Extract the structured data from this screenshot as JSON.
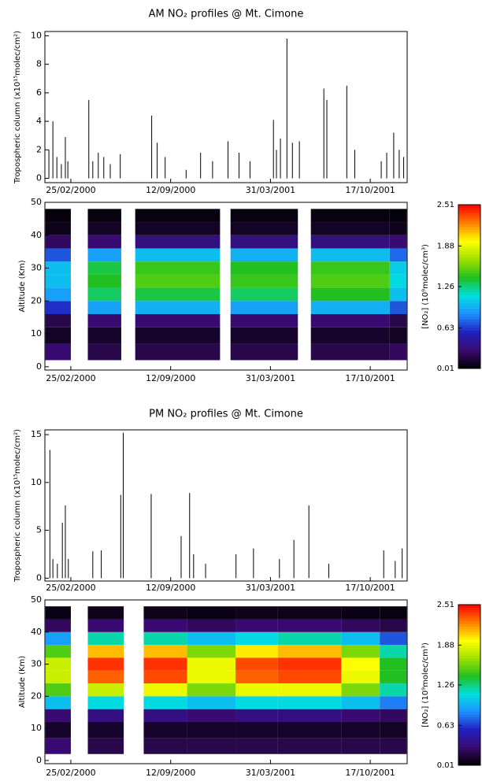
{
  "chart_data": [
    {
      "type": "spike",
      "title": "AM NO₂ profiles @ Mt. Cimone",
      "y_label": "Tropospheric column (x10¹⁵molec/cm²)",
      "color": "#000000",
      "xlim": [
        "2000-01-04",
        "2001-12-30"
      ],
      "xticks": [
        {
          "value": "2000-02-25",
          "label": "25/02/2000"
        },
        {
          "value": "2000-09-12",
          "label": "12/09/2000"
        },
        {
          "value": "2001-03-31",
          "label": "31/03/2001"
        },
        {
          "value": "2001-10-17",
          "label": "17/10/2001"
        }
      ],
      "ylim": [
        -0.3,
        10.3
      ],
      "yticks": [
        0,
        2,
        4,
        6,
        8,
        10
      ],
      "x": [
        "2000-01-12",
        "2000-01-20",
        "2000-01-28",
        "2000-02-06",
        "2000-02-14",
        "2000-02-19",
        "2000-04-01",
        "2000-04-09",
        "2000-04-20",
        "2000-05-01",
        "2000-05-14",
        "2000-06-03",
        "2000-08-05",
        "2000-08-16",
        "2000-09-01",
        "2000-10-13",
        "2000-11-11",
        "2000-12-05",
        "2001-01-05",
        "2001-01-27",
        "2001-02-18",
        "2001-04-06",
        "2001-04-12",
        "2001-04-20",
        "2001-05-03",
        "2001-05-14",
        "2001-05-28",
        "2001-07-16",
        "2001-07-22",
        "2001-08-31",
        "2001-09-16",
        "2001-11-08",
        "2001-11-19",
        "2001-12-03",
        "2001-12-14",
        "2001-12-23"
      ],
      "values": [
        2.0,
        4.0,
        1.5,
        1.0,
        2.9,
        1.2,
        5.5,
        1.2,
        1.8,
        1.5,
        1.0,
        1.7,
        4.4,
        2.5,
        1.5,
        0.6,
        1.8,
        1.2,
        2.6,
        1.8,
        1.2,
        4.1,
        2.0,
        2.8,
        9.8,
        2.5,
        2.6,
        6.3,
        5.5,
        6.5,
        2.0,
        1.2,
        1.8,
        3.2,
        2.0,
        1.5
      ]
    },
    {
      "type": "heatmap",
      "y_label": "Altitude (Km)",
      "xlim": [
        "2000-01-04",
        "2001-12-30"
      ],
      "xticks": [
        {
          "value": "2000-02-25",
          "label": "25/02/2000"
        },
        {
          "value": "2000-09-12",
          "label": "12/09/2000"
        },
        {
          "value": "2001-03-31",
          "label": "31/03/2001"
        },
        {
          "value": "2001-10-17",
          "label": "17/10/2001"
        }
      ],
      "ylim": [
        -1,
        50
      ],
      "yticks": [
        0,
        10,
        20,
        30,
        40,
        50
      ],
      "x_bins": [
        "2000-01-05",
        "2000-02-25",
        "2000-03-30",
        "2000-06-05",
        "2000-07-03",
        "2000-12-20",
        "2001-01-10",
        "2001-05-25",
        "2001-06-20",
        "2001-11-25",
        "2001-12-29"
      ],
      "y_bins": [
        2,
        7,
        12,
        16,
        20,
        24,
        28,
        32,
        36,
        40,
        44,
        48
      ],
      "z": [
        [
          0.3,
          0.1,
          0.2,
          0.6,
          0.9,
          1.0,
          1.0,
          0.7,
          0.25,
          0.08,
          0.04
        ],
        null,
        [
          0.2,
          0.12,
          0.3,
          0.9,
          1.3,
          1.4,
          1.35,
          0.9,
          0.3,
          0.1,
          0.05
        ],
        null,
        [
          0.2,
          0.12,
          0.3,
          0.95,
          1.35,
          1.5,
          1.45,
          1.0,
          0.35,
          0.1,
          0.05
        ],
        null,
        [
          0.2,
          0.12,
          0.3,
          0.9,
          1.3,
          1.45,
          1.4,
          0.95,
          0.35,
          0.1,
          0.05
        ],
        null,
        [
          0.2,
          0.12,
          0.3,
          0.95,
          1.4,
          1.5,
          1.45,
          1.0,
          0.35,
          0.1,
          0.05
        ],
        [
          0.25,
          0.1,
          0.2,
          0.7,
          1.0,
          1.1,
          1.05,
          0.75,
          0.3,
          0.08,
          0.04
        ]
      ],
      "colormap": [
        "#000000",
        "#3a0a6e",
        "#2020c0",
        "#1e90ff",
        "#00e0e0",
        "#20c020",
        "#a0e000",
        "#ffff00",
        "#ff8000",
        "#ff0000"
      ],
      "colorbar": {
        "label": "[NO₂] (10⁹molec/cm³)",
        "lim": [
          0.01,
          2.51
        ],
        "ticks": [
          0.01,
          0.63,
          1.26,
          1.88,
          2.51
        ]
      }
    },
    {
      "type": "spike",
      "title": "PM NO₂ profiles @ Mt. Cimone",
      "y_label": "Tropospheric column (x10¹⁵molec/cm²)",
      "color": "#000000",
      "xlim": [
        "2000-01-04",
        "2001-12-30"
      ],
      "xticks": [
        {
          "value": "2000-02-25",
          "label": "25/02/2000"
        },
        {
          "value": "2000-09-12",
          "label": "12/09/2000"
        },
        {
          "value": "2001-03-31",
          "label": "31/03/2001"
        },
        {
          "value": "2001-10-17",
          "label": "17/10/2001"
        }
      ],
      "ylim": [
        -0.3,
        15.5
      ],
      "yticks": [
        0,
        5,
        10,
        15
      ],
      "x": [
        "2000-01-14",
        "2000-01-20",
        "2000-01-29",
        "2000-02-08",
        "2000-02-14",
        "2000-02-20",
        "2000-04-09",
        "2000-04-26",
        "2000-06-04",
        "2000-06-09",
        "2000-08-04",
        "2000-10-03",
        "2000-10-20",
        "2000-10-28",
        "2000-11-21",
        "2001-01-21",
        "2001-02-25",
        "2001-04-18",
        "2001-05-17",
        "2001-06-16",
        "2001-07-26",
        "2001-11-13",
        "2001-12-06",
        "2001-12-20"
      ],
      "values": [
        13.4,
        2.0,
        1.5,
        5.8,
        7.6,
        2.0,
        2.8,
        2.9,
        8.7,
        15.2,
        8.8,
        4.4,
        8.9,
        2.5,
        1.5,
        2.5,
        3.1,
        2.0,
        4.0,
        7.6,
        1.5,
        2.9,
        1.8,
        3.1
      ]
    },
    {
      "type": "heatmap",
      "y_label": "Altitude (Km)",
      "xlim": [
        "2000-01-04",
        "2001-12-30"
      ],
      "xticks": [
        {
          "value": "2000-02-25",
          "label": "25/02/2000"
        },
        {
          "value": "2000-09-12",
          "label": "12/09/2000"
        },
        {
          "value": "2001-03-31",
          "label": "31/03/2001"
        },
        {
          "value": "2001-10-17",
          "label": "17/10/2001"
        }
      ],
      "ylim": [
        -1,
        50
      ],
      "yticks": [
        0,
        10,
        20,
        30,
        40,
        50
      ],
      "x_bins": [
        "2000-01-05",
        "2000-02-25",
        "2000-03-30",
        "2000-06-10",
        "2000-07-20",
        "2000-10-15",
        "2001-01-20",
        "2001-04-15",
        "2001-08-20",
        "2001-11-05",
        "2001-12-29"
      ],
      "y_bins": [
        2,
        7,
        12,
        16,
        20,
        24,
        28,
        32,
        36,
        40,
        44,
        48
      ],
      "z": [
        [
          0.3,
          0.12,
          0.3,
          1.0,
          1.5,
          1.8,
          1.8,
          1.5,
          0.9,
          0.25,
          0.06
        ],
        null,
        [
          0.2,
          0.12,
          0.35,
          1.1,
          1.8,
          2.3,
          2.4,
          2.1,
          1.2,
          0.3,
          0.08
        ],
        null,
        [
          0.2,
          0.12,
          0.35,
          1.1,
          1.9,
          2.35,
          2.4,
          2.1,
          1.2,
          0.3,
          0.08
        ],
        [
          0.2,
          0.12,
          0.3,
          1.0,
          1.6,
          1.9,
          1.9,
          1.6,
          1.0,
          0.25,
          0.06
        ],
        [
          0.2,
          0.12,
          0.35,
          1.1,
          1.9,
          2.3,
          2.35,
          2.0,
          1.1,
          0.3,
          0.08
        ],
        [
          0.2,
          0.12,
          0.35,
          1.1,
          1.9,
          2.35,
          2.4,
          2.1,
          1.2,
          0.3,
          0.08
        ],
        [
          0.2,
          0.12,
          0.3,
          1.0,
          1.6,
          1.9,
          1.95,
          1.6,
          1.0,
          0.25,
          0.06
        ],
        [
          0.2,
          0.1,
          0.25,
          0.8,
          1.2,
          1.4,
          1.4,
          1.2,
          0.7,
          0.2,
          0.05
        ]
      ],
      "colormap": [
        "#000000",
        "#3a0a6e",
        "#2020c0",
        "#1e90ff",
        "#00e0e0",
        "#20c020",
        "#a0e000",
        "#ffff00",
        "#ff8000",
        "#ff0000"
      ],
      "colorbar": {
        "label": "[NO₂] (10⁹molec/cm³)",
        "lim": [
          0.01,
          2.51
        ],
        "ticks": [
          0.01,
          0.63,
          1.26,
          1.88,
          2.51
        ]
      }
    }
  ]
}
